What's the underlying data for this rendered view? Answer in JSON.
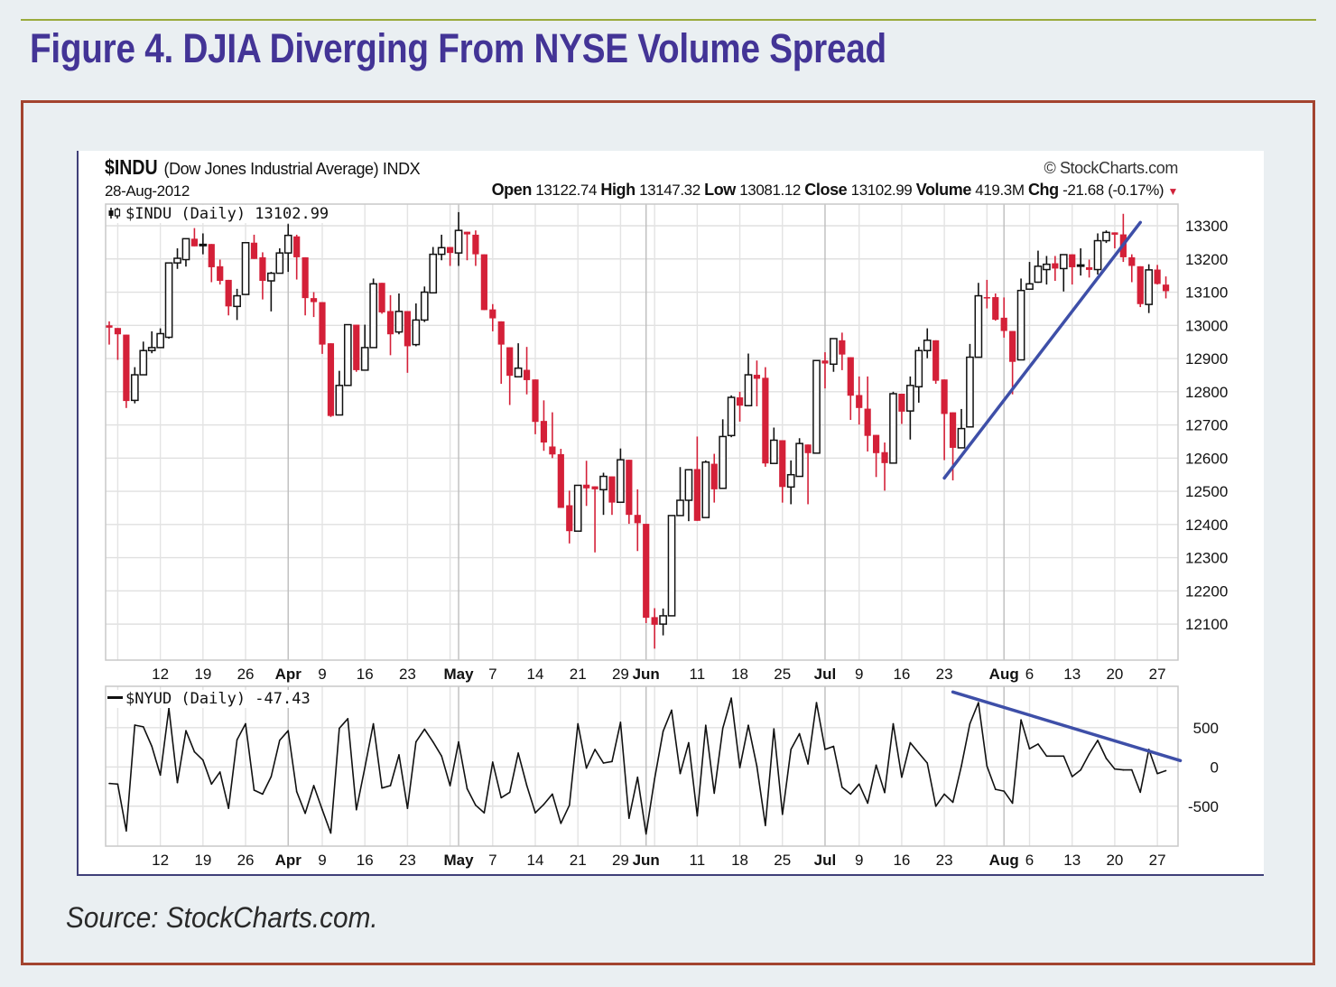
{
  "figure": {
    "title": "Figure 4. DJIA Diverging From NYSE Volume Spread",
    "source": "Source: StockCharts.com."
  },
  "chart_header": {
    "symbol": "$INDU",
    "description": "(Dow Jones Industrial Average) INDX",
    "copyright": "© StockCharts.com",
    "date": "28-Aug-2012",
    "open_label": "Open",
    "open": "13122.74",
    "high_label": "High",
    "high": "13147.32",
    "low_label": "Low",
    "low": "13081.12",
    "close_label": "Close",
    "close": "13102.99",
    "volume_label": "Volume",
    "volume": "419.3M",
    "chg_label": "Chg",
    "chg": "-21.68 (-0.17%)",
    "price_legend": "$INDU (Daily) 13102.99",
    "nyud_legend": "$NYUD (Daily) -47.43"
  },
  "colors": {
    "up": "#ffffff",
    "down": "#d42038",
    "trendline": "#3e4fa8",
    "title": "#433496",
    "frame": "#a3432f"
  },
  "chart_data": [
    {
      "type": "candlestick",
      "series_name": "$INDU (Daily)",
      "ylim": [
        12000,
        13350
      ],
      "y_ticks": [
        12100,
        12200,
        12300,
        12400,
        12500,
        12600,
        12700,
        12800,
        12900,
        13000,
        13100,
        13200,
        13300
      ],
      "grid": true,
      "y_axis_side": "right",
      "x_ticks": [
        {
          "date": "2012-03-12",
          "label": "12"
        },
        {
          "date": "2012-03-19",
          "label": "19"
        },
        {
          "date": "2012-03-26",
          "label": "26"
        },
        {
          "date": "2012-04-02",
          "label": "Apr",
          "bold": true
        },
        {
          "date": "2012-04-09",
          "label": "9"
        },
        {
          "date": "2012-04-16",
          "label": "16"
        },
        {
          "date": "2012-04-23",
          "label": "23"
        },
        {
          "date": "2012-05-01",
          "label": "May",
          "bold": true
        },
        {
          "date": "2012-05-07",
          "label": "7"
        },
        {
          "date": "2012-05-14",
          "label": "14"
        },
        {
          "date": "2012-05-21",
          "label": "21"
        },
        {
          "date": "2012-05-29",
          "label": "29"
        },
        {
          "date": "2012-06-01",
          "label": "Jun",
          "bold": true
        },
        {
          "date": "2012-06-11",
          "label": "11"
        },
        {
          "date": "2012-06-18",
          "label": "18"
        },
        {
          "date": "2012-06-25",
          "label": "25"
        },
        {
          "date": "2012-07-02",
          "label": "Jul",
          "bold": true
        },
        {
          "date": "2012-07-09",
          "label": "9"
        },
        {
          "date": "2012-07-16",
          "label": "16"
        },
        {
          "date": "2012-07-23",
          "label": "23"
        },
        {
          "date": "2012-08-01",
          "label": "Aug",
          "bold": true
        },
        {
          "date": "2012-08-06",
          "label": "6"
        },
        {
          "date": "2012-08-13",
          "label": "13"
        },
        {
          "date": "2012-08-20",
          "label": "20"
        },
        {
          "date": "2012-08-27",
          "label": "27"
        }
      ],
      "x": [
        "2012-03-02",
        "2012-03-05",
        "2012-03-06",
        "2012-03-07",
        "2012-03-08",
        "2012-03-09",
        "2012-03-12",
        "2012-03-13",
        "2012-03-14",
        "2012-03-15",
        "2012-03-16",
        "2012-03-19",
        "2012-03-20",
        "2012-03-21",
        "2012-03-22",
        "2012-03-23",
        "2012-03-26",
        "2012-03-27",
        "2012-03-28",
        "2012-03-29",
        "2012-03-30",
        "2012-04-02",
        "2012-04-03",
        "2012-04-04",
        "2012-04-05",
        "2012-04-09",
        "2012-04-10",
        "2012-04-11",
        "2012-04-12",
        "2012-04-13",
        "2012-04-16",
        "2012-04-17",
        "2012-04-18",
        "2012-04-19",
        "2012-04-20",
        "2012-04-23",
        "2012-04-24",
        "2012-04-25",
        "2012-04-26",
        "2012-04-27",
        "2012-04-30",
        "2012-05-01",
        "2012-05-02",
        "2012-05-03",
        "2012-05-04",
        "2012-05-07",
        "2012-05-08",
        "2012-05-09",
        "2012-05-10",
        "2012-05-11",
        "2012-05-14",
        "2012-05-15",
        "2012-05-16",
        "2012-05-17",
        "2012-05-18",
        "2012-05-21",
        "2012-05-22",
        "2012-05-23",
        "2012-05-24",
        "2012-05-25",
        "2012-05-29",
        "2012-05-30",
        "2012-05-31",
        "2012-06-01",
        "2012-06-04",
        "2012-06-05",
        "2012-06-06",
        "2012-06-07",
        "2012-06-08",
        "2012-06-11",
        "2012-06-12",
        "2012-06-13",
        "2012-06-14",
        "2012-06-15",
        "2012-06-18",
        "2012-06-19",
        "2012-06-20",
        "2012-06-21",
        "2012-06-22",
        "2012-06-25",
        "2012-06-26",
        "2012-06-27",
        "2012-06-28",
        "2012-06-29",
        "2012-07-02",
        "2012-07-03",
        "2012-07-05",
        "2012-07-06",
        "2012-07-09",
        "2012-07-10",
        "2012-07-11",
        "2012-07-12",
        "2012-07-13",
        "2012-07-16",
        "2012-07-17",
        "2012-07-18",
        "2012-07-19",
        "2012-07-20",
        "2012-07-23",
        "2012-07-24",
        "2012-07-25",
        "2012-07-26",
        "2012-07-27",
        "2012-07-30",
        "2012-07-31",
        "2012-08-01",
        "2012-08-02",
        "2012-08-03",
        "2012-08-06",
        "2012-08-07",
        "2012-08-08",
        "2012-08-09",
        "2012-08-10",
        "2012-08-13",
        "2012-08-14",
        "2012-08-15",
        "2012-08-16",
        "2012-08-17",
        "2012-08-20",
        "2012-08-21",
        "2012-08-22",
        "2012-08-23",
        "2012-08-24",
        "2012-08-27",
        "2012-08-28"
      ],
      "ohlc": [
        [
          13000,
          13012,
          12942,
          12993
        ],
        [
          12992,
          12992,
          12896,
          12973
        ],
        [
          12972,
          12972,
          12751,
          12772
        ],
        [
          12774,
          12874,
          12765,
          12851
        ],
        [
          12851,
          12951,
          12851,
          12924
        ],
        [
          12924,
          12982,
          12916,
          12933
        ],
        [
          12933,
          12991,
          12933,
          12975
        ],
        [
          12964,
          13188,
          12960,
          13188
        ],
        [
          13188,
          13232,
          13170,
          13202
        ],
        [
          13198,
          13261,
          13177,
          13261
        ],
        [
          13261,
          13293,
          13238,
          13238
        ],
        [
          13244,
          13277,
          13214,
          13244
        ],
        [
          13245,
          13245,
          13130,
          13175
        ],
        [
          13178,
          13198,
          13123,
          13134
        ],
        [
          13137,
          13137,
          13030,
          13057
        ],
        [
          13057,
          13110,
          13016,
          13089
        ],
        [
          13093,
          13249,
          13093,
          13249
        ],
        [
          13249,
          13273,
          13200,
          13200
        ],
        [
          13205,
          13220,
          13078,
          13134
        ],
        [
          13134,
          13161,
          13042,
          13157
        ],
        [
          13157,
          13232,
          13157,
          13218
        ],
        [
          13218,
          13305,
          13161,
          13271
        ],
        [
          13268,
          13273,
          13138,
          13205
        ],
        [
          13205,
          13205,
          13030,
          13082
        ],
        [
          13082,
          13100,
          13025,
          13070
        ],
        [
          13070,
          13070,
          12914,
          12942
        ],
        [
          12946,
          12946,
          12724,
          12727
        ],
        [
          12730,
          12863,
          12730,
          12819
        ],
        [
          12819,
          13002,
          12819,
          13002
        ],
        [
          13002,
          13002,
          12860,
          12865
        ],
        [
          12865,
          13002,
          12865,
          12933
        ],
        [
          12933,
          13141,
          12933,
          13125
        ],
        [
          13128,
          13128,
          13035,
          13039
        ],
        [
          13043,
          13091,
          12910,
          12973
        ],
        [
          12980,
          13096,
          12973,
          13042
        ],
        [
          13043,
          13043,
          12857,
          12937
        ],
        [
          12942,
          13066,
          12937,
          13016
        ],
        [
          13016,
          13117,
          13010,
          13100
        ],
        [
          13098,
          13236,
          13098,
          13214
        ],
        [
          13214,
          13273,
          13196,
          13234
        ],
        [
          13236,
          13236,
          13179,
          13218
        ],
        [
          13218,
          13341,
          13179,
          13286
        ],
        [
          13282,
          13282,
          13196,
          13274
        ],
        [
          13273,
          13286,
          13179,
          13214
        ],
        [
          13214,
          13214,
          13046,
          13046
        ],
        [
          13048,
          13064,
          12982,
          13021
        ],
        [
          13012,
          13012,
          12824,
          12942
        ],
        [
          12934,
          12934,
          12760,
          12848
        ],
        [
          12845,
          12946,
          12845,
          12871
        ],
        [
          12866,
          12935,
          12792,
          12835
        ],
        [
          12837,
          12837,
          12672,
          12709
        ],
        [
          12712,
          12774,
          12622,
          12647
        ],
        [
          12635,
          12738,
          12600,
          12611
        ],
        [
          12612,
          12628,
          12450,
          12450
        ],
        [
          12458,
          12502,
          12343,
          12380
        ],
        [
          12380,
          12518,
          12380,
          12518
        ],
        [
          12520,
          12592,
          12456,
          12509
        ],
        [
          12515,
          12515,
          12316,
          12506
        ],
        [
          12505,
          12556,
          12429,
          12545
        ],
        [
          12545,
          12545,
          12429,
          12466
        ],
        [
          12467,
          12629,
          12467,
          12595
        ],
        [
          12595,
          12595,
          12402,
          12429
        ],
        [
          12429,
          12506,
          12320,
          12404
        ],
        [
          12402,
          12402,
          12103,
          12119
        ],
        [
          12121,
          12148,
          12026,
          12098
        ],
        [
          12100,
          12147,
          12066,
          12125
        ],
        [
          12125,
          12427,
          12125,
          12427
        ],
        [
          12427,
          12573,
          12427,
          12473
        ],
        [
          12473,
          12565,
          12410,
          12565
        ],
        [
          12567,
          12665,
          12411,
          12411
        ],
        [
          12421,
          12593,
          12421,
          12588
        ],
        [
          12583,
          12613,
          12466,
          12506
        ],
        [
          12509,
          12717,
          12509,
          12665
        ],
        [
          12668,
          12789,
          12663,
          12783
        ],
        [
          12783,
          12800,
          12710,
          12758
        ],
        [
          12758,
          12915,
          12758,
          12851
        ],
        [
          12851,
          12894,
          12756,
          12839
        ],
        [
          12842,
          12874,
          12574,
          12584
        ],
        [
          12584,
          12692,
          12584,
          12654
        ],
        [
          12654,
          12654,
          12466,
          12513
        ],
        [
          12513,
          12593,
          12461,
          12550
        ],
        [
          12545,
          12660,
          12545,
          12644
        ],
        [
          12641,
          12641,
          12461,
          12615
        ],
        [
          12615,
          12894,
          12615,
          12894
        ],
        [
          12894,
          12919,
          12810,
          12885
        ],
        [
          12883,
          12960,
          12860,
          12960
        ],
        [
          12955,
          12978,
          12865,
          12912
        ],
        [
          12904,
          12904,
          12715,
          12788
        ],
        [
          12790,
          12846,
          12701,
          12751
        ],
        [
          12749,
          12846,
          12620,
          12667
        ],
        [
          12670,
          12670,
          12543,
          12615
        ],
        [
          12618,
          12647,
          12502,
          12585
        ],
        [
          12585,
          12800,
          12585,
          12794
        ],
        [
          12794,
          12794,
          12703,
          12740
        ],
        [
          12742,
          12846,
          12656,
          12819
        ],
        [
          12815,
          12935,
          12767,
          12924
        ],
        [
          12924,
          12991,
          12901,
          12955
        ],
        [
          12955,
          12955,
          12824,
          12833
        ],
        [
          12837,
          12837,
          12594,
          12733
        ],
        [
          12738,
          12738,
          12533,
          12631
        ],
        [
          12631,
          12748,
          12631,
          12689
        ],
        [
          12694,
          12944,
          12694,
          12904
        ],
        [
          12904,
          13128,
          12904,
          13089
        ],
        [
          13085,
          13137,
          13051,
          13082
        ],
        [
          13085,
          13096,
          13014,
          13017
        ],
        [
          13023,
          13084,
          12963,
          12983
        ],
        [
          12983,
          12983,
          12792,
          12890
        ],
        [
          12896,
          13141,
          12896,
          13105
        ],
        [
          13109,
          13191,
          13109,
          13125
        ],
        [
          13130,
          13225,
          13128,
          13178
        ],
        [
          13168,
          13209,
          13123,
          13184
        ],
        [
          13187,
          13209,
          13134,
          13171
        ],
        [
          13171,
          13213,
          13102,
          13213
        ],
        [
          13214,
          13214,
          13123,
          13175
        ],
        [
          13182,
          13232,
          13150,
          13182
        ],
        [
          13175,
          13198,
          13144,
          13167
        ],
        [
          13168,
          13277,
          13153,
          13255
        ],
        [
          13255,
          13286,
          13248,
          13280
        ],
        [
          13280,
          13280,
          13232,
          13273
        ],
        [
          13274,
          13336,
          13191,
          13205
        ],
        [
          13205,
          13214,
          13130,
          13179
        ],
        [
          13178,
          13178,
          13055,
          13064
        ],
        [
          13063,
          13184,
          13037,
          13167
        ],
        [
          13168,
          13182,
          13123,
          13124.67
        ],
        [
          13122.74,
          13147.32,
          13081.12,
          13102.99
        ]
      ],
      "annotations": [
        {
          "type": "trendline",
          "from": {
            "date": "2012-07-23",
            "value": 12540
          },
          "to": {
            "date": "2012-08-23",
            "value": 13310
          }
        }
      ]
    },
    {
      "type": "line",
      "series_name": "$NYUD (Daily)",
      "ylim": [
        -1010,
        1030
      ],
      "y_ticks": [
        500,
        0,
        -500
      ],
      "grid": true,
      "y_axis_side": "right",
      "values": [
        -211,
        -219,
        -815,
        533,
        511,
        262,
        -104,
        746,
        -200,
        462,
        192,
        88,
        -219,
        -65,
        -527,
        346,
        550,
        -296,
        -346,
        -123,
        338,
        462,
        -315,
        -592,
        -238,
        -546,
        -842,
        492,
        615,
        -546,
        -8,
        550,
        -269,
        -238,
        154,
        -527,
        319,
        481,
        319,
        138,
        -238,
        319,
        -277,
        -488,
        -585,
        62,
        -392,
        -323,
        177,
        -238,
        -585,
        -477,
        -346,
        -719,
        -488,
        550,
        -15,
        223,
        50,
        69,
        569,
        -654,
        -131,
        -854,
        -150,
        454,
        723,
        -85,
        308,
        -623,
        531,
        -335,
        492,
        877,
        -8,
        531,
        12,
        -746,
        485,
        -604,
        223,
        423,
        38,
        819,
        223,
        262,
        -258,
        -346,
        -219,
        -462,
        23,
        -327,
        550,
        -131,
        308,
        177,
        50,
        -500,
        -346,
        -450,
        12,
        550,
        819,
        12,
        -285,
        -308,
        -462,
        600,
        231,
        292,
        138,
        138,
        138,
        -123,
        -38,
        165,
        338,
        108,
        -27,
        -38,
        -38,
        -323,
        223,
        -85,
        -47.43
      ],
      "annotations": [
        {
          "type": "trendline",
          "from": {
            "date": "2012-07-24",
            "value": 955
          },
          "to": {
            "date": "2012-08-28",
            "value": 136
          }
        }
      ]
    }
  ]
}
